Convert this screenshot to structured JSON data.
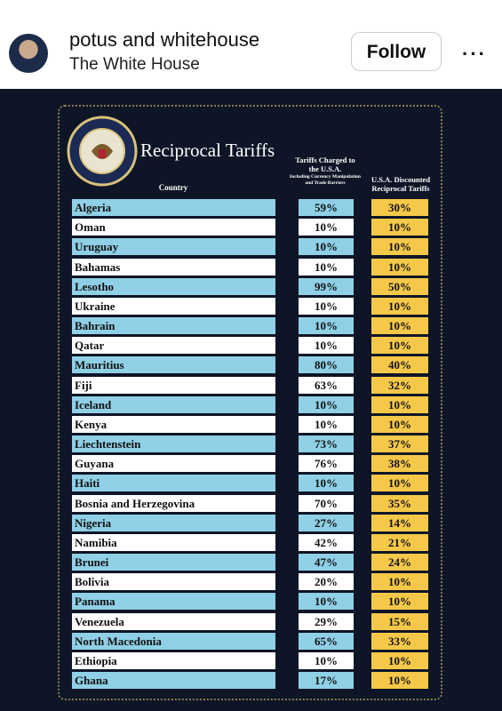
{
  "header": {
    "account": "potus and whitehouse",
    "subtitle": "The White House",
    "button": "Follow"
  },
  "table": {
    "title": "Reciprocal Tariffs",
    "columns": {
      "country": "Country",
      "charged": "Tariffs Charged to the U.S.A.",
      "charged_note": "Including Currency Manipulation and Trade Barriers",
      "discounted": "U.S.A. Discounted Reciprocal Tariffs"
    },
    "rows": [
      [
        "Algeria",
        "59%",
        "30%"
      ],
      [
        "Oman",
        "10%",
        "10%"
      ],
      [
        "Uruguay",
        "10%",
        "10%"
      ],
      [
        "Bahamas",
        "10%",
        "10%"
      ],
      [
        "Lesotho",
        "99%",
        "50%"
      ],
      [
        "Ukraine",
        "10%",
        "10%"
      ],
      [
        "Bahrain",
        "10%",
        "10%"
      ],
      [
        "Qatar",
        "10%",
        "10%"
      ],
      [
        "Mauritius",
        "80%",
        "40%"
      ],
      [
        "Fiji",
        "63%",
        "32%"
      ],
      [
        "Iceland",
        "10%",
        "10%"
      ],
      [
        "Kenya",
        "10%",
        "10%"
      ],
      [
        "Liechtenstein",
        "73%",
        "37%"
      ],
      [
        "Guyana",
        "76%",
        "38%"
      ],
      [
        "Haiti",
        "10%",
        "10%"
      ],
      [
        "Bosnia and Herzegovina",
        "70%",
        "35%"
      ],
      [
        "Nigeria",
        "27%",
        "14%"
      ],
      [
        "Namibia",
        "42%",
        "21%"
      ],
      [
        "Brunei",
        "47%",
        "24%"
      ],
      [
        "Bolivia",
        "20%",
        "10%"
      ],
      [
        "Panama",
        "10%",
        "10%"
      ],
      [
        "Venezuela",
        "29%",
        "15%"
      ],
      [
        "North Macedonia",
        "65%",
        "33%"
      ],
      [
        "Ethiopia",
        "10%",
        "10%"
      ],
      [
        "Ghana",
        "17%",
        "10%"
      ]
    ]
  }
}
